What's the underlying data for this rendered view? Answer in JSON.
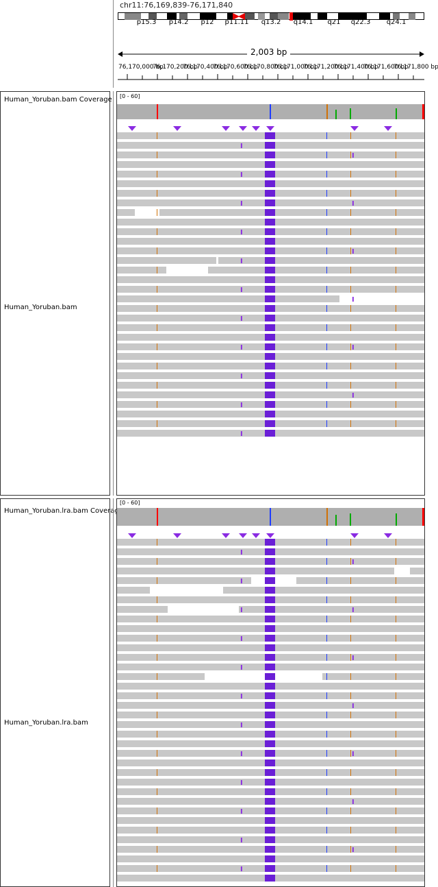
{
  "header": {
    "locus": "chr11:76,169,839-76,171,840",
    "span_label": "2,003 bp",
    "band_labels": [
      "p15.3",
      "p14.2",
      "p12",
      "p11.11",
      "q13.2",
      "q14.1",
      "q21",
      "q22.3",
      "q24.1"
    ],
    "tick_labels": [
      "76,170,000 bp",
      "76,170,200 bp",
      "76,170,400 bp",
      "76,170,600 bp",
      "76,170,800 bp",
      "76,171,000 bp",
      "76,171,200 bp",
      "76,171,400 bp",
      "76,171,600 bp",
      "76,171,800 bp"
    ]
  },
  "tracks": {
    "bam1": {
      "coverage_name": "Human_Yoruban.bam Coverage",
      "reads_name": "Human_Yoruban.bam",
      "range": "[0 - 60]"
    },
    "bam2": {
      "coverage_name": "Human_Yoruban.lra.bam Coverage",
      "reads_name": "Human_Yoruban.lra.bam",
      "range": "[0 - 60]"
    }
  },
  "colors": {
    "read": "#c8c8c8",
    "coverage": "#afafaf",
    "insertion": "#8a2be2",
    "mismatch_c": "#1e3cff",
    "mismatch_g": "#d17105",
    "mismatch_a": "#00aa00",
    "mismatch_t": "#ff0000",
    "centromere": "#e60000"
  }
}
